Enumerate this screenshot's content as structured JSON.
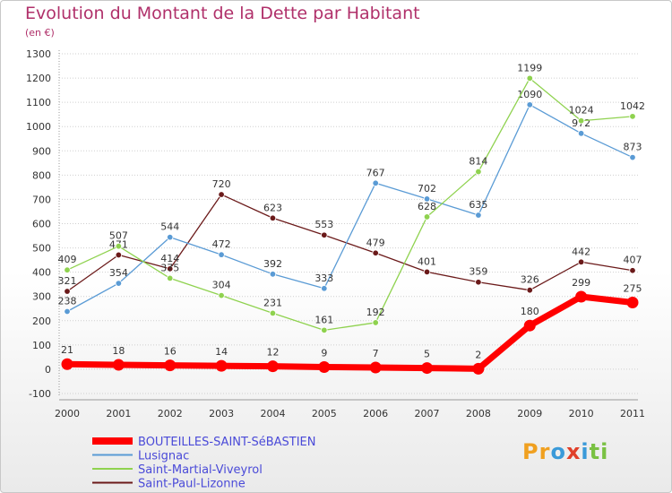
{
  "header": {
    "title": "Evolution du Montant de la Dette par Habitant",
    "unit": "(en €)"
  },
  "logo": {
    "text": "Proxiti"
  },
  "chart_data": {
    "type": "line",
    "title": "Evolution du Montant de la Dette par Habitant",
    "subtitle": "(en €)",
    "xlabel": "",
    "ylabel": "",
    "x": [
      "2000",
      "2001",
      "2002",
      "2003",
      "2004",
      "2005",
      "2006",
      "2007",
      "2008",
      "2009",
      "2010",
      "2011"
    ],
    "yticks": [
      -100,
      0,
      100,
      200,
      300,
      400,
      500,
      600,
      700,
      800,
      900,
      1000,
      1100,
      1200,
      1300
    ],
    "ylim": [
      -100,
      1300
    ],
    "grid": "horizontal dotted",
    "legend": "bottom-left",
    "series": [
      {
        "name": "BOUTEILLES-SAINT-SéBASTIEN",
        "color": "#ff0000",
        "highlight": true,
        "values": [
          21,
          18,
          16,
          14,
          12,
          9,
          7,
          5,
          2,
          180,
          299,
          275
        ]
      },
      {
        "name": "Lusignac",
        "color": "#5a9bd5",
        "highlight": false,
        "values": [
          238,
          354,
          544,
          472,
          392,
          333,
          767,
          702,
          635,
          1090,
          972,
          873
        ]
      },
      {
        "name": "Saint-Martial-Viveyrol",
        "color": "#8fd24f",
        "highlight": false,
        "values": [
          409,
          507,
          375,
          304,
          231,
          161,
          192,
          628,
          814,
          1199,
          1024,
          1042
        ]
      },
      {
        "name": "Saint-Paul-Lizonne",
        "color": "#6b1a1a",
        "highlight": false,
        "values": [
          321,
          471,
          414,
          720,
          623,
          553,
          479,
          401,
          359,
          326,
          442,
          407
        ]
      }
    ]
  }
}
